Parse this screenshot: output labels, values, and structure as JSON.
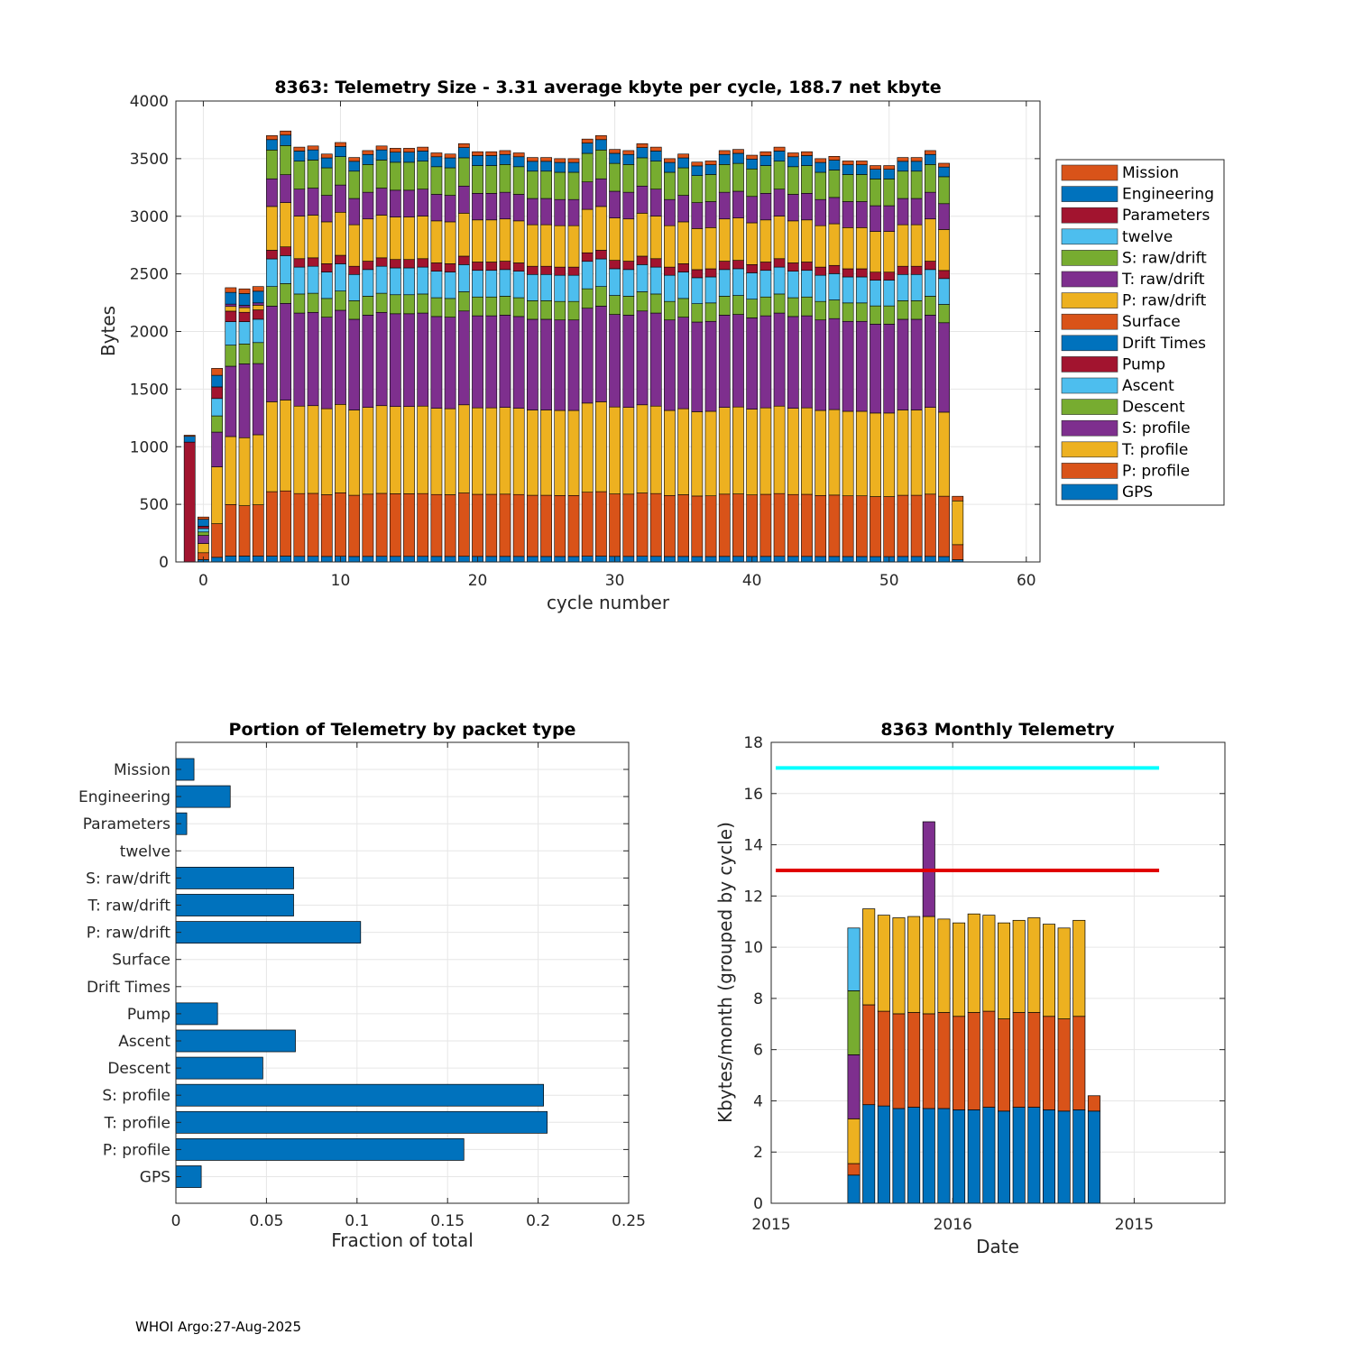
{
  "footer": "WHOI Argo:27-Aug-2025",
  "colors": {
    "GPS": "#0072bd",
    "P: profile": "#d95319",
    "T: profile": "#edb120",
    "S: profile": "#7e2f8e",
    "Descent": "#77ac30",
    "Ascent": "#4dbeee",
    "Pump": "#a2142f",
    "Drift Times": "#0072bd",
    "Surface": "#d95319",
    "P: raw/drift": "#edb120",
    "T: raw/drift": "#7e2f8e",
    "S: raw/drift": "#77ac30",
    "twelve": "#4dbeee",
    "Parameters": "#a2142f",
    "Engineering": "#0072bd",
    "Mission": "#d95319",
    "cyan_line": "#00ffff",
    "red_line": "#e00000"
  },
  "chart_data": [
    {
      "id": "telemetry-size",
      "type": "bar",
      "stacked": true,
      "title": "8363: Telemetry Size - 3.31 average kbyte per cycle,  188.7 net kbyte",
      "xlabel": "cycle number",
      "ylabel": "Bytes",
      "xlim": [
        -2,
        61
      ],
      "ylim": [
        0,
        4000
      ],
      "xticks": [
        0,
        10,
        20,
        30,
        40,
        50,
        60
      ],
      "yticks": [
        0,
        500,
        1000,
        1500,
        2000,
        2500,
        3000,
        3500,
        4000
      ],
      "grid": true,
      "legend_position": "outside-right",
      "legend": [
        "Mission",
        "Engineering",
        "Parameters",
        "twelve",
        "S: raw/drift",
        "T: raw/drift",
        "P: raw/drift",
        "Surface",
        "Drift Times",
        "Pump",
        "Ascent",
        "Descent",
        "S: profile",
        "T: profile",
        "P: profile",
        "GPS"
      ],
      "stack_order": [
        "GPS",
        "P: profile",
        "T: profile",
        "S: profile",
        "Descent",
        "Ascent",
        "Pump",
        "Drift Times",
        "Surface",
        "P: raw/drift",
        "T: raw/drift",
        "S: raw/drift",
        "twelve",
        "Parameters",
        "Engineering",
        "Mission"
      ],
      "x": [
        -1,
        0,
        1,
        2,
        3,
        4,
        5,
        6,
        7,
        8,
        9,
        10,
        11,
        12,
        13,
        14,
        15,
        16,
        17,
        18,
        19,
        20,
        21,
        22,
        23,
        24,
        25,
        26,
        27,
        28,
        29,
        30,
        31,
        32,
        33,
        34,
        35,
        36,
        37,
        38,
        39,
        40,
        41,
        42,
        43,
        44,
        45,
        46,
        47,
        48,
        49,
        50,
        51,
        52,
        53,
        54,
        55
      ],
      "totals": [
        1100,
        390,
        1680,
        2380,
        2370,
        2390,
        3700,
        3740,
        3600,
        3610,
        3540,
        3640,
        3510,
        3570,
        3610,
        3590,
        3590,
        3600,
        3550,
        3540,
        3630,
        3560,
        3560,
        3570,
        3550,
        3510,
        3510,
        3500,
        3500,
        3670,
        3700,
        3580,
        3570,
        3630,
        3600,
        3500,
        3540,
        3470,
        3480,
        3570,
        3580,
        3530,
        3560,
        3600,
        3550,
        3560,
        3500,
        3520,
        3480,
        3480,
        3440,
        3440,
        3510,
        3510,
        3570,
        3460,
        570
      ],
      "segments": {
        "default": {
          "GPS": 50,
          "P: profile": 560,
          "T: profile": 780,
          "S: profile": 830,
          "Descent": 170,
          "Ascent": 240,
          "Pump": 75,
          "Drift Times": 0,
          "Surface": 0,
          "P: raw/drift": 380,
          "T: raw/drift": 240,
          "S: raw/drift": 250,
          "twelve": 0,
          "Parameters": 0,
          "Engineering": 90,
          "Mission": 35
        },
        "-1": {
          "GPS": 0,
          "P: profile": 0,
          "T: profile": 0,
          "S: profile": 0,
          "Descent": 0,
          "Ascent": 0,
          "Pump": 0,
          "Drift Times": 0,
          "Surface": 0,
          "P: raw/drift": 0,
          "T: raw/drift": 0,
          "S: raw/drift": 0,
          "twelve": 0,
          "Parameters": 1040,
          "Engineering": 50,
          "Mission": 10
        },
        "0": {
          "GPS": 20,
          "P: profile": 60,
          "T: profile": 80,
          "S: profile": 70,
          "Descent": 30,
          "Ascent": 30,
          "Pump": 20,
          "Drift Times": 0,
          "Surface": 0,
          "P: raw/drift": 0,
          "T: raw/drift": 0,
          "S: raw/drift": 0,
          "twelve": 0,
          "Parameters": 0,
          "Engineering": 60,
          "Mission": 20
        },
        "1": {
          "GPS": 40,
          "P: profile": 290,
          "T: profile": 490,
          "S: profile": 300,
          "Descent": 140,
          "Ascent": 150,
          "Pump": 100,
          "Drift Times": 0,
          "Surface": 0,
          "P: raw/drift": 0,
          "T: raw/drift": 0,
          "S: raw/drift": 0,
          "twelve": 0,
          "Parameters": 0,
          "Engineering": 100,
          "Mission": 60
        },
        "2": {
          "GPS": 50,
          "P: profile": 440,
          "T: profile": 580,
          "S: profile": 600,
          "Descent": 180,
          "Ascent": 200,
          "Pump": 90,
          "Drift Times": 0,
          "Surface": 0,
          "P: raw/drift": 40,
          "T: raw/drift": 20,
          "S: raw/drift": 0,
          "twelve": 0,
          "Parameters": 0,
          "Engineering": 100,
          "Mission": 40
        },
        "3": {
          "GPS": 50,
          "P: profile": 430,
          "T: profile": 580,
          "S: profile": 630,
          "Descent": 170,
          "Ascent": 190,
          "Pump": 80,
          "Drift Times": 0,
          "Surface": 0,
          "P: raw/drift": 40,
          "T: raw/drift": 20,
          "S: raw/drift": 0,
          "twelve": 0,
          "Parameters": 0,
          "Engineering": 100,
          "Mission": 40
        },
        "4": {
          "GPS": 50,
          "P: profile": 440,
          "T: profile": 600,
          "S: profile": 610,
          "Descent": 180,
          "Ascent": 200,
          "Pump": 80,
          "Drift Times": 0,
          "Surface": 0,
          "P: raw/drift": 40,
          "T: raw/drift": 20,
          "S: raw/drift": 0,
          "twelve": 0,
          "Parameters": 0,
          "Engineering": 100,
          "Mission": 40
        },
        "55": {
          "GPS": 20,
          "P: profile": 130,
          "T: profile": 380,
          "S: profile": 0,
          "Descent": 0,
          "Ascent": 0,
          "Pump": 0,
          "Drift Times": 0,
          "Surface": 0,
          "P: raw/drift": 0,
          "T: raw/drift": 0,
          "S: raw/drift": 0,
          "twelve": 0,
          "Parameters": 0,
          "Engineering": 0,
          "Mission": 40
        }
      }
    },
    {
      "id": "portion-by-packet",
      "type": "bar",
      "orientation": "horizontal",
      "title": "Portion of Telemetry by packet type",
      "xlabel": "Fraction of total",
      "xlim": [
        0,
        0.25
      ],
      "xticks": [
        0,
        0.05,
        0.1,
        0.15,
        0.2,
        0.25
      ],
      "xtick_labels": [
        "0",
        "0.05",
        "0.1",
        "0.15",
        "0.2",
        "0.25"
      ],
      "grid": true,
      "categories": [
        "Mission",
        "Engineering",
        "Parameters",
        "twelve",
        "S: raw/drift",
        "T: raw/drift",
        "P: raw/drift",
        "Surface",
        "Drift Times",
        "Pump",
        "Ascent",
        "Descent",
        "S: profile",
        "T: profile",
        "P: profile",
        "GPS"
      ],
      "values": [
        0.01,
        0.03,
        0.006,
        0,
        0.065,
        0.065,
        0.102,
        0,
        0,
        0.023,
        0.066,
        0.048,
        0.203,
        0.205,
        0.159,
        0.014
      ]
    },
    {
      "id": "monthly-telemetry",
      "type": "bar",
      "stacked": true,
      "title": "8363 Monthly Telemetry",
      "xlabel": "Date",
      "ylabel": "Kbytes/month (grouped by cycle)",
      "ylim": [
        0,
        18
      ],
      "yticks": [
        0,
        2,
        4,
        6,
        8,
        10,
        12,
        14,
        16,
        18
      ],
      "xticks": [
        "2015",
        "2016",
        "2015"
      ],
      "grid": true,
      "reference_lines": [
        17,
        13
      ],
      "stack_colors": [
        "#0072bd",
        "#d95319",
        "#edb120",
        "#7e2f8e",
        "#77ac30",
        "#4dbeee"
      ],
      "bars": [
        [
          1.1,
          0.45,
          1.75,
          2.5,
          2.5,
          2.45
        ],
        [
          3.85,
          3.9,
          3.75,
          0,
          0,
          0
        ],
        [
          3.8,
          3.7,
          3.75,
          0,
          0,
          0
        ],
        [
          3.7,
          3.7,
          3.75,
          0,
          0,
          0
        ],
        [
          3.75,
          3.7,
          3.75,
          0,
          0,
          0
        ],
        [
          3.7,
          3.7,
          3.8,
          3.7,
          0,
          0
        ],
        [
          3.7,
          3.75,
          3.65,
          0,
          0,
          0
        ],
        [
          3.65,
          3.65,
          3.65,
          0,
          0,
          0
        ],
        [
          3.65,
          3.8,
          3.85,
          0,
          0,
          0
        ],
        [
          3.75,
          3.75,
          3.75,
          0,
          0,
          0
        ],
        [
          3.6,
          3.6,
          3.75,
          0,
          0,
          0
        ],
        [
          3.75,
          3.7,
          3.6,
          0,
          0,
          0
        ],
        [
          3.75,
          3.7,
          3.7,
          0,
          0,
          0
        ],
        [
          3.65,
          3.65,
          3.6,
          0,
          0,
          0
        ],
        [
          3.6,
          3.6,
          3.55,
          0,
          0,
          0
        ],
        [
          3.65,
          3.65,
          3.75,
          0,
          0,
          0
        ],
        [
          3.6,
          0.6,
          0,
          0,
          0,
          0
        ]
      ]
    }
  ]
}
